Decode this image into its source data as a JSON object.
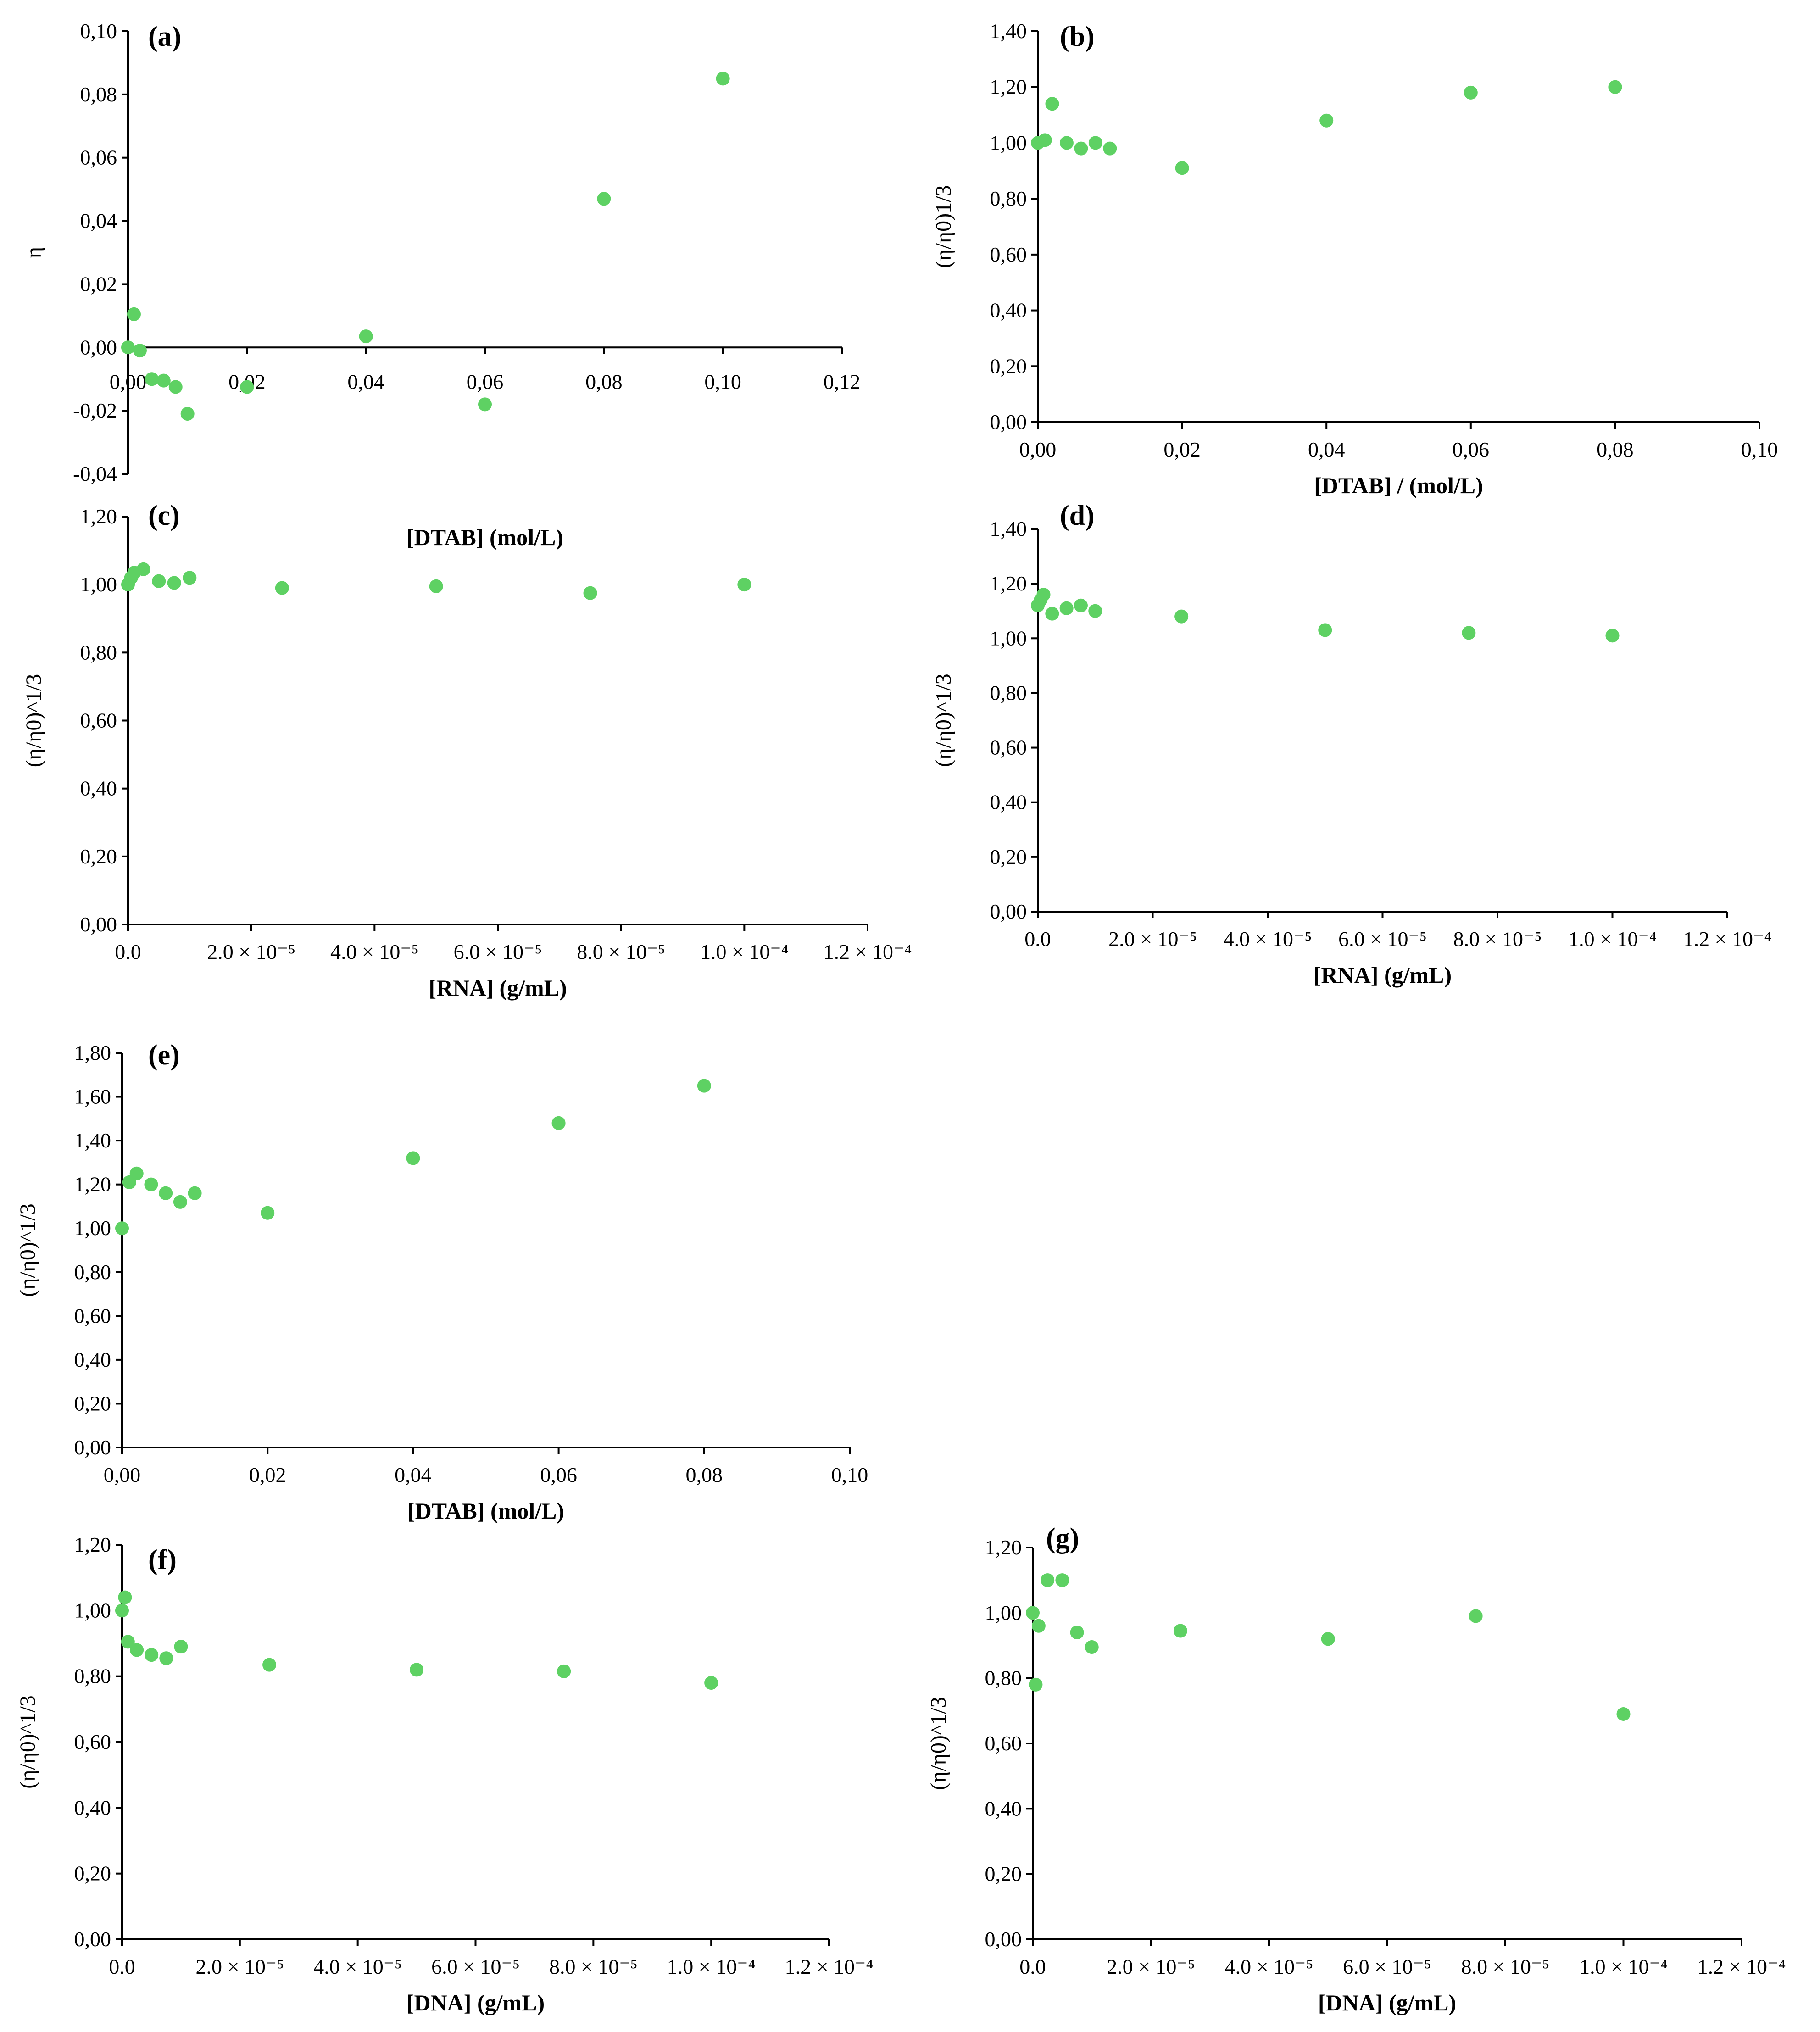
{
  "colors": {
    "point": "#5ed163",
    "axis": "#000000",
    "background": "#ffffff"
  },
  "chart_data": [
    {
      "panel": "(a)",
      "type": "scatter",
      "xlabel": "[DTAB] (mol/L)",
      "ylabel": "η",
      "xlim": [
        0,
        0.12
      ],
      "ylim": [
        -0.04,
        0.1
      ],
      "xticks": [
        "0,00",
        "0,02",
        "0,04",
        "0,06",
        "0,08",
        "0,10",
        "0,12"
      ],
      "yticks": [
        "-0,04",
        "-0,02",
        "0,00",
        "0,02",
        "0,04",
        "0,06",
        "0,08",
        "0,10"
      ],
      "x": [
        0,
        0.001,
        0.002,
        0.004,
        0.006,
        0.008,
        0.01,
        0.02,
        0.04,
        0.06,
        0.08,
        0.1
      ],
      "y": [
        0.0,
        0.0105,
        -0.001,
        -0.01,
        -0.0105,
        -0.0125,
        -0.021,
        -0.0125,
        0.0035,
        -0.018,
        0.047,
        0.085
      ]
    },
    {
      "panel": "(b)",
      "type": "scatter",
      "xlabel": "[DTAB] / (mol/L)",
      "ylabel": "(η/η0)1/3",
      "xlim": [
        0,
        0.1
      ],
      "ylim": [
        0,
        1.4
      ],
      "xticks": [
        "0,00",
        "0,02",
        "0,04",
        "0,06",
        "0,08",
        "0,10"
      ],
      "yticks": [
        "0,00",
        "0,20",
        "0,40",
        "0,60",
        "0,80",
        "1,00",
        "1,20",
        "1,40"
      ],
      "x": [
        0,
        0.001,
        0.002,
        0.004,
        0.006,
        0.008,
        0.01,
        0.02,
        0.04,
        0.06,
        0.08
      ],
      "y": [
        1.0,
        1.01,
        1.14,
        1.0,
        0.98,
        1.0,
        0.98,
        0.91,
        1.08,
        1.18,
        1.2
      ]
    },
    {
      "panel": "(c)",
      "type": "scatter",
      "xlabel": "[RNA] (g/mL)",
      "ylabel": "(η/η0)^1/3",
      "xlim": [
        0,
        0.00012
      ],
      "ylim": [
        0,
        1.2
      ],
      "xticks": [
        "0.0",
        "2.0 × 10⁻⁵",
        "4.0 × 10⁻⁵",
        "6.0 × 10⁻⁵",
        "8.0 × 10⁻⁵",
        "1.0 × 10⁻⁴",
        "1.2 × 10⁻⁴"
      ],
      "yticks": [
        "0,00",
        "0,20",
        "0,40",
        "0,60",
        "0,80",
        "1,00",
        "1,20"
      ],
      "x": [
        0,
        5e-07,
        1e-06,
        2.5e-06,
        5e-06,
        7.5e-06,
        1e-05,
        2.5e-05,
        5e-05,
        7.5e-05,
        0.0001
      ],
      "y": [
        1.0,
        1.02,
        1.035,
        1.045,
        1.01,
        1.005,
        1.02,
        0.99,
        0.995,
        0.975,
        1.0
      ]
    },
    {
      "panel": "(d)",
      "type": "scatter",
      "xlabel": "[RNA] (g/mL)",
      "ylabel": "(η/η0)^1/3",
      "xlim": [
        0,
        0.00012
      ],
      "ylim": [
        0,
        1.4
      ],
      "xticks": [
        "0.0",
        "2.0 × 10⁻⁵",
        "4.0 × 10⁻⁵",
        "6.0 × 10⁻⁵",
        "8.0 × 10⁻⁵",
        "1.0 × 10⁻⁴",
        "1.2 × 10⁻⁴"
      ],
      "yticks": [
        "0,00",
        "0,20",
        "0,40",
        "0,60",
        "0,80",
        "1,00",
        "1,20",
        "1,40"
      ],
      "x": [
        0,
        5e-07,
        1e-06,
        2.5e-06,
        5e-06,
        7.5e-06,
        1e-05,
        2.5e-05,
        5e-05,
        7.5e-05,
        0.0001
      ],
      "y": [
        1.12,
        1.14,
        1.16,
        1.09,
        1.11,
        1.12,
        1.1,
        1.08,
        1.03,
        1.02,
        1.01
      ]
    },
    {
      "panel": "(e)",
      "type": "scatter",
      "xlabel": "[DTAB] (mol/L)",
      "ylabel": "(η/η0)^1/3",
      "xlim": [
        0,
        0.1
      ],
      "ylim": [
        0,
        1.8
      ],
      "xticks": [
        "0,00",
        "0,02",
        "0,04",
        "0,06",
        "0,08",
        "0,10"
      ],
      "yticks": [
        "0,00",
        "0,20",
        "0,40",
        "0,60",
        "0,80",
        "1,00",
        "1,20",
        "1,40",
        "1,60",
        "1,80"
      ],
      "x": [
        0,
        0.001,
        0.002,
        0.004,
        0.006,
        0.008,
        0.01,
        0.02,
        0.04,
        0.06,
        0.08
      ],
      "y": [
        1.0,
        1.21,
        1.25,
        1.2,
        1.16,
        1.12,
        1.16,
        1.07,
        1.32,
        1.48,
        1.65
      ]
    },
    {
      "panel": "(f)",
      "type": "scatter",
      "xlabel": "[DNA] (g/mL)",
      "ylabel": "(η/η0)^1/3",
      "xlim": [
        0,
        0.00012
      ],
      "ylim": [
        0,
        1.2
      ],
      "xticks": [
        "0.0",
        "2.0 × 10⁻⁵",
        "4.0 × 10⁻⁵",
        "6.0 × 10⁻⁵",
        "8.0 × 10⁻⁵",
        "1.0 × 10⁻⁴",
        "1.2 × 10⁻⁴"
      ],
      "yticks": [
        "0,00",
        "0,20",
        "0,40",
        "0,60",
        "0,80",
        "1,00",
        "1,20"
      ],
      "x": [
        0,
        5e-07,
        1e-06,
        2.5e-06,
        5e-06,
        7.5e-06,
        1e-05,
        2.5e-05,
        5e-05,
        7.5e-05,
        0.0001
      ],
      "y": [
        1.0,
        1.04,
        0.905,
        0.88,
        0.865,
        0.855,
        0.89,
        0.835,
        0.82,
        0.815,
        0.78
      ]
    },
    {
      "panel": "(g)",
      "type": "scatter",
      "xlabel": "[DNA] (g/mL)",
      "ylabel": "(η/η0)^1/3",
      "xlim": [
        0,
        0.00012
      ],
      "ylim": [
        0,
        1.2
      ],
      "xticks": [
        "0.0",
        "2.0 × 10⁻⁵",
        "4.0 × 10⁻⁵",
        "6.0 × 10⁻⁵",
        "8.0 × 10⁻⁵",
        "1.0 × 10⁻⁴",
        "1.2 × 10⁻⁴"
      ],
      "yticks": [
        "0,00",
        "0,20",
        "0,40",
        "0,60",
        "0,80",
        "1,00",
        "1,20"
      ],
      "x": [
        0,
        5e-07,
        1e-06,
        2.5e-06,
        5e-06,
        7.5e-06,
        1e-05,
        2.5e-05,
        5e-05,
        7.5e-05,
        0.0001
      ],
      "y": [
        1.0,
        0.78,
        0.96,
        1.1,
        1.1,
        0.94,
        0.895,
        0.945,
        0.92,
        0.99,
        0.69
      ]
    }
  ]
}
